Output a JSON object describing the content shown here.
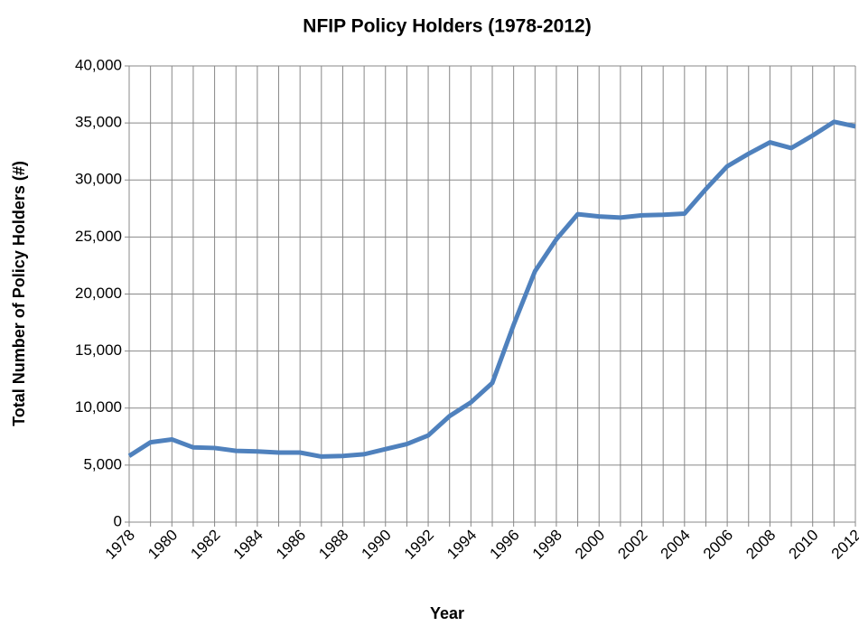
{
  "chart_data": {
    "type": "line",
    "title": "NFIP Policy Holders (1978-2012)",
    "x_label": "Year",
    "y_label": "Total Number of Policy Holders (#)",
    "categories": [
      "1978",
      null,
      "1980",
      null,
      "1982",
      null,
      "1984",
      null,
      "1986",
      null,
      "1988",
      null,
      "1990",
      null,
      "1992",
      null,
      "1994",
      null,
      "1996",
      null,
      "1998",
      null,
      "2000",
      null,
      "2002",
      null,
      "2004",
      null,
      "2006",
      null,
      "2008",
      null,
      "2010",
      null,
      "2012"
    ],
    "series": [
      {
        "name": "Policy Holders",
        "color": "#4f81bd",
        "values": [
          5800,
          7000,
          7250,
          6550,
          6500,
          6250,
          6200,
          6100,
          6100,
          5750,
          5800,
          5950,
          6400,
          6850,
          7600,
          9300,
          10500,
          12200,
          17300,
          22000,
          24800,
          27000,
          26800,
          26700,
          26900,
          26950,
          27050,
          29200,
          31200,
          32300,
          33300,
          32800,
          33900,
          35100,
          34700
        ]
      }
    ],
    "ylim": [
      0,
      40000
    ],
    "yticks": [
      0,
      {
        "value": 5000,
        "label": "5,000"
      },
      {
        "value": 10000,
        "label": "10,000"
      },
      {
        "value": 15000,
        "label": "15,000"
      },
      {
        "value": 20000,
        "label": "20,000"
      },
      {
        "value": 25000,
        "label": "25,000"
      },
      {
        "value": 30000,
        "label": "30,000"
      },
      {
        "value": 35000,
        "label": "35,000"
      },
      {
        "value": 40000,
        "label": "40,000"
      }
    ],
    "grid": true
  }
}
